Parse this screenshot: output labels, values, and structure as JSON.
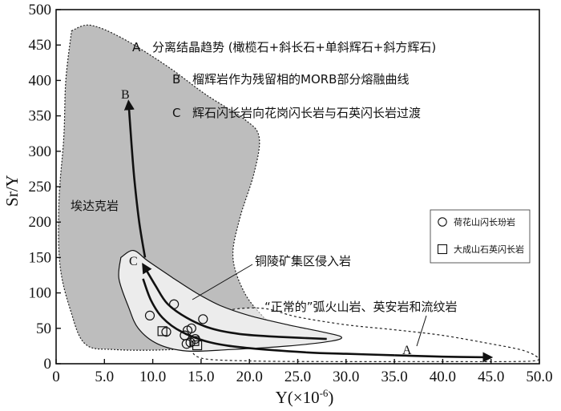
{
  "chart_data": {
    "type": "scatter",
    "xlabel": "Y(×10",
    "xlabel_sup": "-6",
    "xlabel_close": ")",
    "ylabel": "Sr/Y",
    "xlim": [
      0,
      50
    ],
    "ylim": [
      0,
      500
    ],
    "x_ticks": [
      "0",
      "5.0",
      "10.0",
      "15.0",
      "20.0",
      "25.0",
      "30.0",
      "35.0",
      "40.0",
      "45.0",
      "50.0"
    ],
    "y_ticks": [
      "0",
      "50",
      "100",
      "150",
      "200",
      "250",
      "300",
      "350",
      "400",
      "450",
      "500"
    ],
    "annotations": [
      {
        "letter": "A",
        "text": "分离结晶趋势 (橄榄石+斜长石+单斜辉石+斜方辉石)"
      },
      {
        "letter": "B",
        "text": "榴辉岩作为残留相的MORB部分熔融曲线"
      },
      {
        "letter": "C",
        "text": "辉石闪长岩向花岗闪长岩与石英闪长岩过渡"
      }
    ],
    "region_labels": {
      "adakite": "埃达克岩",
      "tongling": "铜陵矿集区侵入岩",
      "normal_arc": "“正常的”弧火山岩、英安岩和流纹岩"
    },
    "arrow_labels": {
      "A": "A",
      "B": "B",
      "C": "C"
    },
    "legend": {
      "placement": "right",
      "entries": [
        {
          "marker": "circle",
          "label": "荷花山闪长玢岩"
        },
        {
          "marker": "square",
          "label": "大成山石英闪长岩"
        }
      ]
    },
    "series": [
      {
        "name": "荷花山闪长玢岩",
        "marker": "circle",
        "points": [
          [
            9.7,
            68
          ],
          [
            12.2,
            84
          ],
          [
            11.4,
            45
          ],
          [
            13.6,
            47
          ],
          [
            14.0,
            50
          ],
          [
            15.2,
            63
          ],
          [
            13.3,
            40
          ],
          [
            14.4,
            35
          ],
          [
            13.9,
            30
          ],
          [
            13.5,
            28
          ]
        ]
      },
      {
        "name": "大成山石英闪长岩",
        "marker": "square",
        "points": [
          [
            11.0,
            46
          ],
          [
            14.3,
            32
          ],
          [
            14.6,
            26
          ]
        ]
      }
    ],
    "regions": {
      "adakite": [
        [
          1.6,
          470
        ],
        [
          3.5,
          478
        ],
        [
          6.8,
          460
        ],
        [
          11.5,
          420
        ],
        [
          15.5,
          380
        ],
        [
          19.5,
          345
        ],
        [
          21.0,
          320
        ],
        [
          20.5,
          270
        ],
        [
          19.0,
          205
        ],
        [
          18.3,
          150
        ],
        [
          19.5,
          100
        ],
        [
          21.5,
          65
        ],
        [
          23.0,
          45
        ],
        [
          18.0,
          27
        ],
        [
          12.0,
          20
        ],
        [
          6.0,
          20
        ],
        [
          3.0,
          28
        ],
        [
          1.5,
          75
        ],
        [
          0.4,
          140
        ],
        [
          0.3,
          230
        ],
        [
          0.8,
          320
        ],
        [
          1.0,
          400
        ],
        [
          1.6,
          470
        ]
      ],
      "tongling": [
        [
          6.7,
          150
        ],
        [
          8.0,
          160
        ],
        [
          9.5,
          145
        ],
        [
          12.0,
          122
        ],
        [
          14.5,
          100
        ],
        [
          17.0,
          82
        ],
        [
          20.0,
          68
        ],
        [
          24.0,
          55
        ],
        [
          27.5,
          45
        ],
        [
          29.5,
          38
        ],
        [
          28.5,
          32
        ],
        [
          24.0,
          25
        ],
        [
          18.0,
          20
        ],
        [
          13.5,
          18
        ],
        [
          10.5,
          28
        ],
        [
          8.5,
          50
        ],
        [
          7.5,
          80
        ],
        [
          6.5,
          120
        ],
        [
          6.7,
          150
        ]
      ],
      "normal_arc": [
        [
          15.5,
          62
        ],
        [
          18.0,
          76
        ],
        [
          21.5,
          78
        ],
        [
          25.0,
          66
        ],
        [
          30.0,
          55
        ],
        [
          35.0,
          48
        ],
        [
          40.0,
          40
        ],
        [
          45.0,
          28
        ],
        [
          48.0,
          20
        ],
        [
          49.5,
          12
        ],
        [
          49.8,
          5
        ],
        [
          47.0,
          3
        ],
        [
          38.0,
          3
        ],
        [
          28.0,
          3
        ],
        [
          20.0,
          4
        ],
        [
          15.0,
          8
        ],
        [
          14.0,
          25
        ],
        [
          14.5,
          45
        ],
        [
          15.5,
          62
        ]
      ]
    },
    "curves": {
      "B": [
        [
          9.2,
          150
        ],
        [
          8.6,
          200
        ],
        [
          8.1,
          260
        ],
        [
          7.8,
          310
        ],
        [
          7.6,
          348
        ],
        [
          7.5,
          370
        ]
      ],
      "A": [
        [
          9.0,
          120
        ],
        [
          9.8,
          90
        ],
        [
          11.0,
          65
        ],
        [
          13.0,
          45
        ],
        [
          16.0,
          30
        ],
        [
          20.0,
          22
        ],
        [
          26.0,
          16
        ],
        [
          30.0,
          14
        ],
        [
          35.0,
          12
        ]
      ],
      "A2": [
        [
          35.0,
          12
        ],
        [
          40.0,
          10
        ],
        [
          45.0,
          9
        ]
      ],
      "C": [
        [
          28.0,
          35
        ],
        [
          23.0,
          38
        ],
        [
          19.0,
          42
        ],
        [
          16.0,
          50
        ],
        [
          13.5,
          65
        ],
        [
          11.5,
          85
        ],
        [
          10.3,
          110
        ],
        [
          9.0,
          140
        ]
      ]
    }
  }
}
